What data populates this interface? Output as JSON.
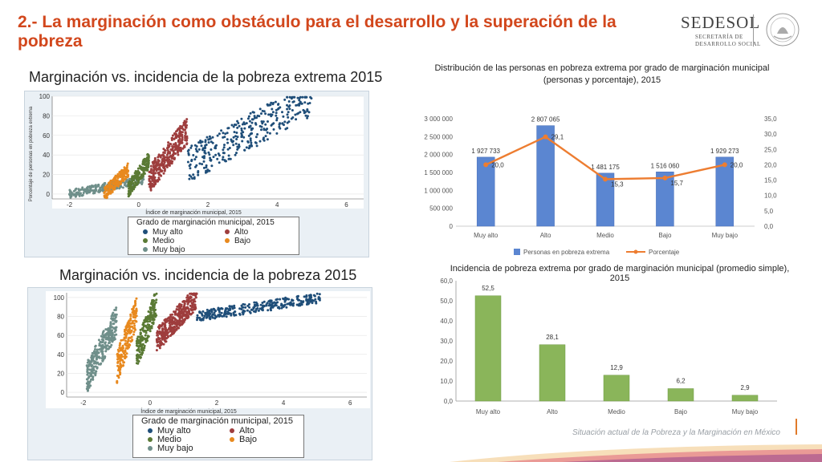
{
  "slide": {
    "title": "2.- La marginación como obstáculo para el desarrollo y la superación de la pobreza",
    "footer": "Situación actual de la Pobreza y la Marginación en México"
  },
  "logo": {
    "name": "SEDESOL",
    "line1": "SECRETARÍA DE",
    "line2": "DESARROLLO SOCIAL"
  },
  "colors": {
    "title": "#d2471c",
    "muy_alto": "#1f4e79",
    "alto": "#9e3d3d",
    "medio": "#5a7a35",
    "bajo": "#e8891e",
    "muy_bajo": "#6f8f8a",
    "bar_blue": "#5b86d1",
    "line_orange": "#ed7d31",
    "bar_green": "#8ab55a"
  },
  "scatter_top": {
    "heading": "Marginación vs. incidencia de la pobreza extrema 2015",
    "ylabel": "Porcentaje de personas en pobreza extrema",
    "xlabel": "Índice de marginación municipal, 2015",
    "legend_title": "Grado de marginación municipal, 2015",
    "legend": [
      "Muy alto",
      "Alto",
      "Medio",
      "Bajo",
      "Muy bajo"
    ]
  },
  "scatter_bottom": {
    "heading": "Marginación vs. incidencia de la pobreza 2015",
    "xlabel": "Índice de marginación municipal, 2015",
    "legend_title": "Grado de marginación municipal, 2015",
    "legend": [
      "Muy alto",
      "Alto",
      "Medio",
      "Bajo",
      "Muy bajo"
    ]
  },
  "chart_data": [
    {
      "type": "scatter",
      "xlim": [
        -2.5,
        6.5
      ],
      "ylim": [
        -5,
        100
      ],
      "xticks": [
        -2,
        0,
        2,
        4,
        6
      ],
      "yticks": [
        0,
        20,
        40,
        60,
        80,
        100
      ],
      "groups": [
        {
          "name": "Muy bajo",
          "x": [
            -2.0,
            0.2
          ],
          "y": [
            0,
            15
          ]
        },
        {
          "name": "Bajo",
          "x": [
            -1.0,
            -0.3
          ],
          "y": [
            0,
            25
          ]
        },
        {
          "name": "Medio",
          "x": [
            -0.3,
            0.3
          ],
          "y": [
            5,
            35
          ]
        },
        {
          "name": "Alto",
          "x": [
            0.3,
            1.4
          ],
          "y": [
            15,
            65
          ]
        },
        {
          "name": "Muy alto",
          "x": [
            1.4,
            5.0
          ],
          "y": [
            30,
            97
          ]
        }
      ]
    },
    {
      "type": "scatter",
      "xlim": [
        -2.5,
        6.5
      ],
      "ylim": [
        -5,
        105
      ],
      "xticks": [
        -2,
        0,
        2,
        4,
        6
      ],
      "yticks": [
        0,
        20,
        40,
        60,
        80,
        100
      ],
      "groups": [
        {
          "name": "Muy bajo",
          "x": [
            -1.9,
            -1.0
          ],
          "y": [
            15,
            75
          ]
        },
        {
          "name": "Bajo",
          "x": [
            -1.0,
            -0.4
          ],
          "y": [
            25,
            85
          ]
        },
        {
          "name": "Medio",
          "x": [
            -0.4,
            0.2
          ],
          "y": [
            40,
            95
          ]
        },
        {
          "name": "Alto",
          "x": [
            0.2,
            1.4
          ],
          "y": [
            55,
            100
          ]
        },
        {
          "name": "Muy alto",
          "x": [
            1.4,
            5.1
          ],
          "y": [
            80,
            100
          ]
        }
      ]
    },
    {
      "type": "bar",
      "title": "Distribución de las personas en pobreza extrema por grado de marginación municipal (personas y porcentaje), 2015",
      "categories": [
        "Muy alto",
        "Alto",
        "Medio",
        "Bajo",
        "Muy bajo"
      ],
      "series": [
        {
          "name": "Personas en pobreza extrema",
          "values": [
            1927733,
            2807065,
            1481175,
            1516060,
            1929273
          ],
          "labels": [
            "1 927 733",
            "2 807 065",
            "1 481 175",
            "1 516 060",
            "1 929 273"
          ]
        },
        {
          "name": "Porcentaje",
          "values": [
            20.0,
            29.1,
            15.3,
            15.7,
            20.0
          ],
          "labels": [
            "20,0",
            "29,1",
            "15,3",
            "15,7",
            "20,0"
          ]
        }
      ],
      "ylim": [
        0,
        3000000
      ],
      "y2lim": [
        0,
        35
      ],
      "yticks": [
        "0",
        "500 000",
        "1 000 000",
        "1 500 000",
        "2 000 000",
        "2 500 000",
        "3 000 000"
      ],
      "y2ticks": [
        "0,0",
        "5,0",
        "10,0",
        "15,0",
        "20,0",
        "25,0",
        "30,0",
        "35,0"
      ],
      "legend": "bottom"
    },
    {
      "type": "bar",
      "title": "Incidencia de pobreza extrema por grado de marginación municipal (promedio simple), 2015",
      "categories": [
        "Muy alto",
        "Alto",
        "Medio",
        "Bajo",
        "Muy bajo"
      ],
      "values": [
        52.5,
        28.1,
        12.9,
        6.2,
        2.9
      ],
      "labels": [
        "52,5",
        "28,1",
        "12,9",
        "6,2",
        "2,9"
      ],
      "ylim": [
        0,
        60
      ],
      "yticks": [
        "0,0",
        "10,0",
        "20,0",
        "30,0",
        "40,0",
        "50,0",
        "60,0"
      ]
    }
  ]
}
